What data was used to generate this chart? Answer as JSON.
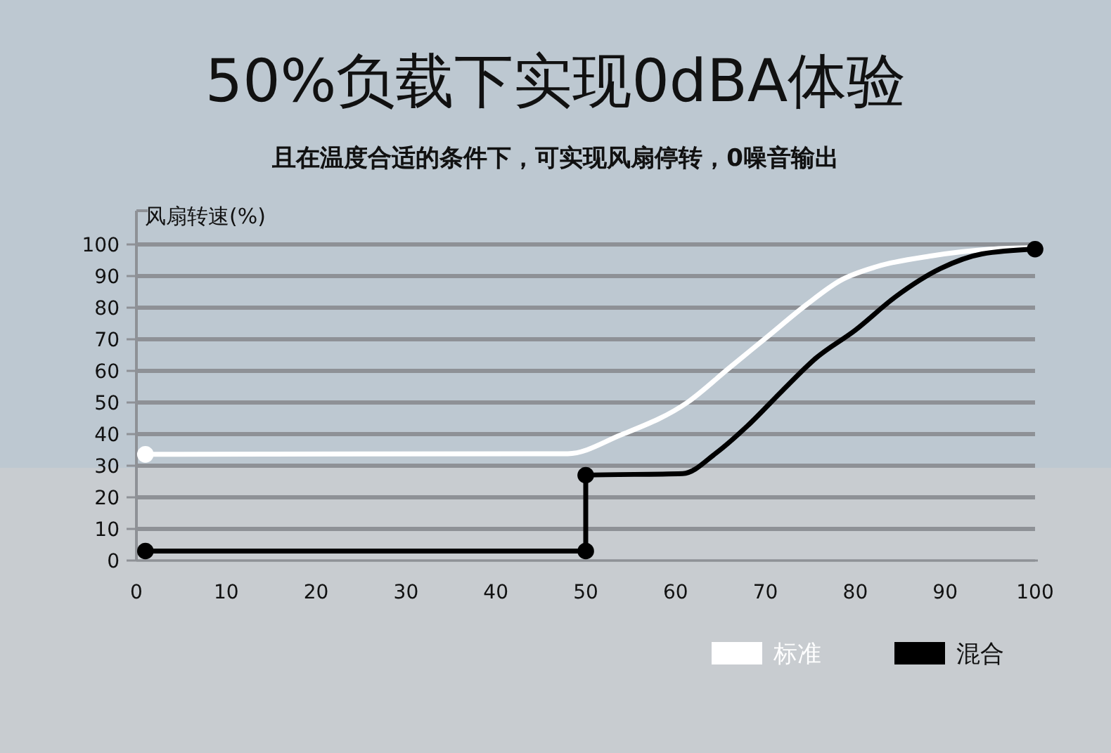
{
  "chart_data": {
    "type": "line",
    "title": "50%负载下实现0dBA体验",
    "subtitle": "且在温度合适的条件下，可实现风扇停转，0噪音输出",
    "ylabel": "风扇转速(%)",
    "xlim": [
      0,
      100
    ],
    "xticks": [
      0,
      10,
      20,
      30,
      40,
      50,
      60,
      70,
      80,
      90,
      100
    ],
    "ylim": [
      0,
      100
    ],
    "yticks": [
      0,
      10,
      20,
      30,
      40,
      50,
      60,
      70,
      80,
      90,
      100
    ],
    "grid": "y",
    "legend": "bottom right",
    "line_style": "solid",
    "series": [
      {
        "name": "标准",
        "color": "#ffffff",
        "x": [
          1,
          48,
          53.8,
          61.3,
          66,
          70.3,
          74.5,
          78.4,
          82.4,
          88.5,
          95,
          100
        ],
        "values": [
          33.6,
          33.8,
          39.6,
          50,
          61,
          71,
          80.8,
          88.7,
          93,
          96.4,
          98.5,
          99
        ]
      },
      {
        "name": "混合",
        "color": "#000000",
        "x": [
          1,
          50,
          50,
          60.8,
          64.5,
          68,
          71.9,
          75.6,
          80,
          84.5,
          89.5,
          94.1,
          100
        ],
        "values": [
          3,
          3,
          27,
          27.5,
          34,
          42.6,
          53.8,
          64,
          72.9,
          83.5,
          92.4,
          97,
          98.5
        ]
      },
      {
        "type": "scatter",
        "marker": "circle",
        "color": "#ffffff",
        "x": [
          1
        ],
        "values": [
          33.6
        ]
      },
      {
        "type": "scatter",
        "marker": "circle",
        "color": "#000000",
        "x": [
          1,
          50,
          50,
          100
        ],
        "values": [
          3,
          3,
          27,
          98.5
        ]
      }
    ]
  }
}
